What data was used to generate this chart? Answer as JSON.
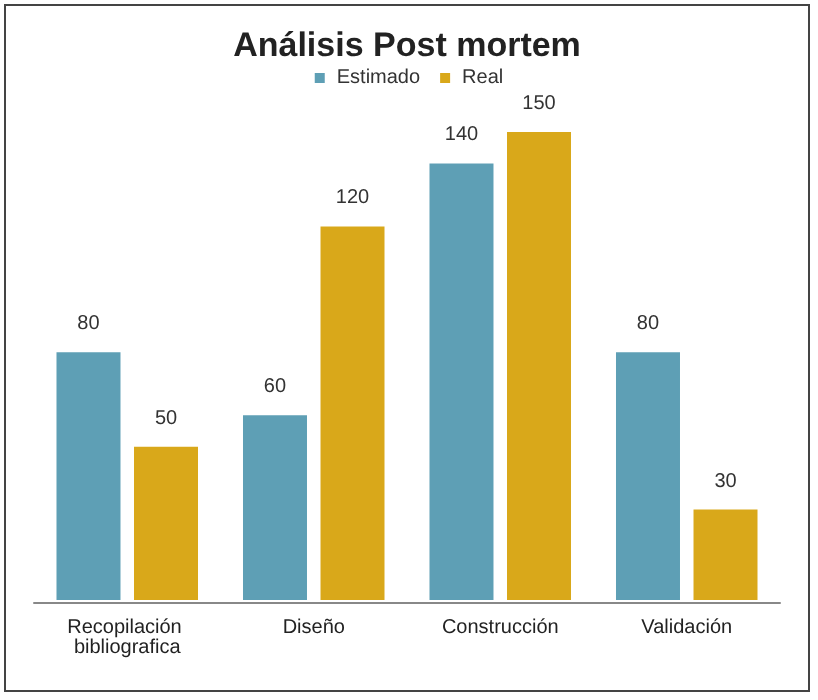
{
  "chart_data": {
    "type": "bar",
    "title": "Análisis Post mortem",
    "categories": [
      "Recopilación bibliografica",
      "Diseño",
      "Construcción",
      "Validación"
    ],
    "series": [
      {
        "name": "Estimado",
        "color": "#5e9fb5",
        "values": [
          80,
          60,
          140,
          80
        ]
      },
      {
        "name": "Real",
        "color": "#d9a81a",
        "values": [
          50,
          120,
          150,
          30
        ]
      }
    ],
    "data_labels": true,
    "legend": "top"
  }
}
